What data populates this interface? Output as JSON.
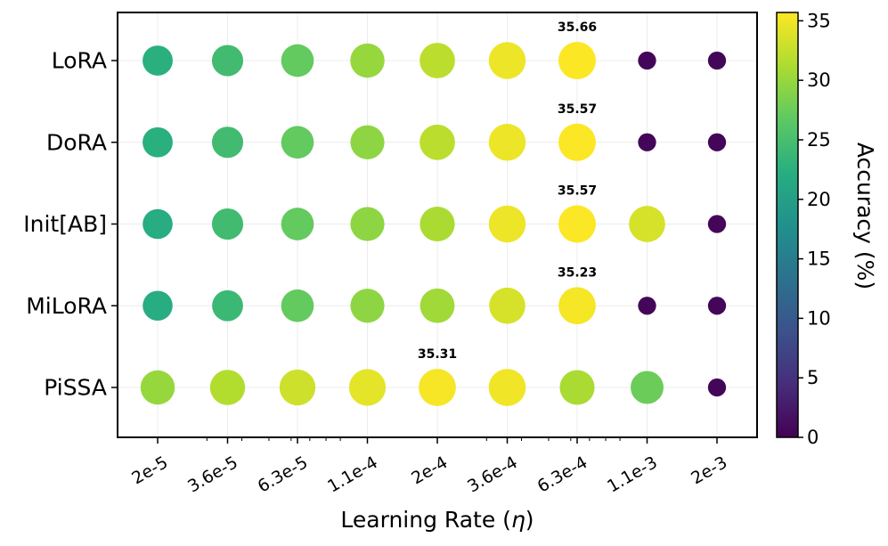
{
  "chart_data": {
    "type": "scatter",
    "title": "",
    "xlabel": "Learning Rate (η)",
    "ylabel": "",
    "colorbar_label": "Accuracy (%)",
    "colorbar_range": [
      0,
      35.7
    ],
    "colorbar_ticks": [
      0,
      5,
      10,
      15,
      20,
      25,
      30,
      35
    ],
    "x_categories": [
      "2e-5",
      "3.6e-5",
      "6.3e-5",
      "1.1e-4",
      "2e-4",
      "3.6e-4",
      "6.3e-4",
      "1.1e-3",
      "2e-3"
    ],
    "series": [
      {
        "name": "LoRA",
        "values": [
          22.5,
          24.5,
          27.0,
          30.0,
          32.0,
          34.8,
          35.66,
          0.5,
          0.5
        ]
      },
      {
        "name": "DoRA",
        "values": [
          22.5,
          24.5,
          27.0,
          29.5,
          32.0,
          34.8,
          35.57,
          0.5,
          0.5
        ]
      },
      {
        "name": "Init[AB]",
        "values": [
          22.0,
          24.5,
          27.0,
          29.5,
          31.0,
          34.8,
          35.57,
          33.5,
          0.5
        ]
      },
      {
        "name": "MiLoRA",
        "values": [
          22.0,
          24.0,
          27.0,
          29.5,
          30.5,
          33.5,
          35.23,
          0.5,
          0.5
        ]
      },
      {
        "name": "PiSSA",
        "values": [
          30.0,
          31.5,
          33.0,
          34.3,
          35.31,
          35.0,
          31.0,
          27.5,
          0.5
        ]
      }
    ],
    "annotations": [
      {
        "series": "LoRA",
        "x": "6.3e-4",
        "text": "35.66"
      },
      {
        "series": "DoRA",
        "x": "6.3e-4",
        "text": "35.57"
      },
      {
        "series": "Init[AB]",
        "x": "6.3e-4",
        "text": "35.57"
      },
      {
        "series": "MiLoRA",
        "x": "6.3e-4",
        "text": "35.23"
      },
      {
        "series": "PiSSA",
        "x": "2e-4",
        "text": "35.31"
      }
    ],
    "grid": true,
    "colormap": "viridis"
  }
}
